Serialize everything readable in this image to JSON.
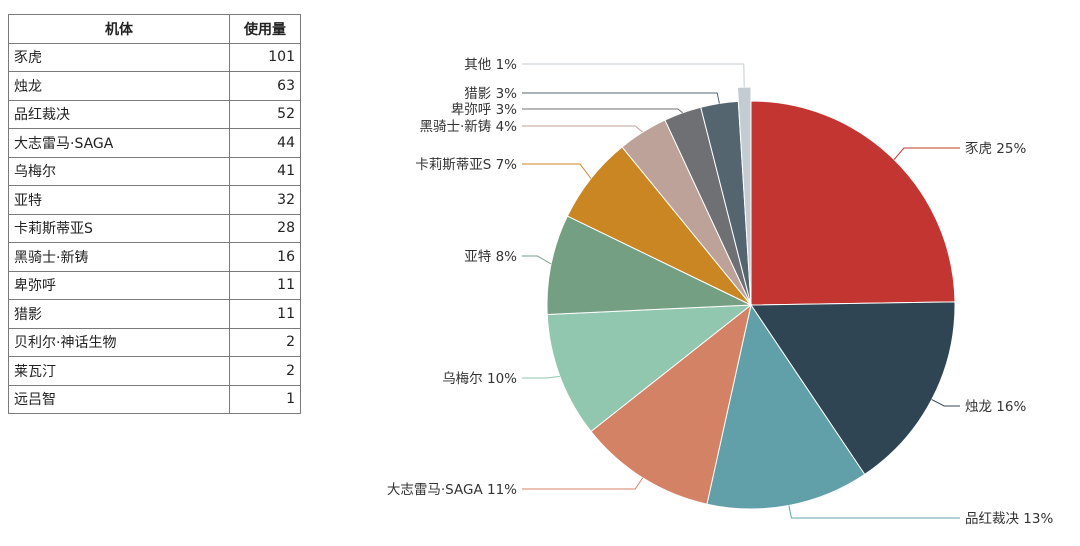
{
  "table": {
    "header": {
      "name": "机体",
      "value": "使用量"
    },
    "rows": [
      {
        "name": "豕虎",
        "value": "101"
      },
      {
        "name": "烛龙",
        "value": "63"
      },
      {
        "name": "品红裁决",
        "value": "52"
      },
      {
        "name": "大志雷马·SAGA",
        "value": "44"
      },
      {
        "name": "乌梅尔",
        "value": "41"
      },
      {
        "name": "亚特",
        "value": "32"
      },
      {
        "name": "卡莉斯蒂亚S",
        "value": "28"
      },
      {
        "name": "黑骑士·新铸",
        "value": "16"
      },
      {
        "name": "卑弥呼",
        "value": "11"
      },
      {
        "name": "猎影",
        "value": "11"
      },
      {
        "name": "贝利尔·神话生物",
        "value": "2"
      },
      {
        "name": "莱瓦汀",
        "value": "2"
      },
      {
        "name": "远吕智",
        "value": "1"
      }
    ]
  },
  "chart_data": {
    "type": "pie",
    "title": "",
    "slices": [
      {
        "label": "豕虎 25%",
        "value": 25,
        "color": "#c23531"
      },
      {
        "label": "烛龙 16%",
        "value": 16,
        "color": "#2f4554"
      },
      {
        "label": "品红裁决 13%",
        "value": 13,
        "color": "#61a0a8"
      },
      {
        "label": "大志雷马·SAGA 11%",
        "value": 11,
        "color": "#d48265"
      },
      {
        "label": "乌梅尔 10%",
        "value": 10,
        "color": "#91c7ae"
      },
      {
        "label": "亚特 8%",
        "value": 8,
        "color": "#749f83"
      },
      {
        "label": "卡莉斯蒂亚S 7%",
        "value": 7,
        "color": "#ca8622"
      },
      {
        "label": "黑骑士·新铸 4%",
        "value": 4,
        "color": "#bda29a"
      },
      {
        "label": "卑弥呼 3%",
        "value": 3,
        "color": "#6e7074"
      },
      {
        "label": "猎影 3%",
        "value": 3,
        "color": "#546570"
      },
      {
        "label": "其他 1%",
        "value": 1,
        "color": "#c4ccd3"
      }
    ]
  }
}
